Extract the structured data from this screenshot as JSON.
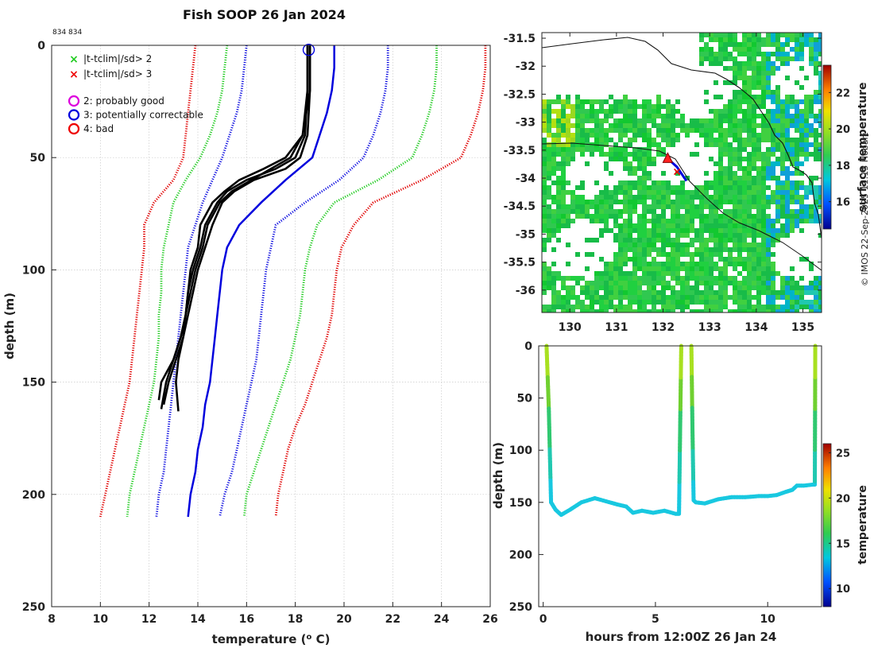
{
  "title": "Fish SOOP 26 Jan 2024",
  "profile_id": "834 834",
  "credit": "© IMOS 22-Sep-2025 11:13 Hobart",
  "colors": {
    "clim_sd3": "#e00000",
    "clim_sd2": "#22cc22",
    "clim_sd1": "#1010e0",
    "clim_sd_solid": "#0000dd",
    "profile": "#000000",
    "qc_probably_good": "#dd00dd",
    "qc_correctable": "#0000dd",
    "qc_bad": "#ee0000"
  },
  "legend": {
    "flags": [
      {
        "label": "|t-tclim|/sd> 2",
        "marker": "x",
        "color": "#22cc22"
      },
      {
        "label": "|t-tclim|/sd> 3",
        "marker": "x",
        "color": "#ee0000"
      }
    ],
    "qc": [
      {
        "label": "2: probably good",
        "color": "#dd00dd"
      },
      {
        "label": "3: potentially correctable",
        "color": "#0000dd"
      },
      {
        "label": "4: bad",
        "color": "#ee0000"
      }
    ]
  },
  "chart_data": [
    {
      "type": "line",
      "title": "Fish SOOP 26 Jan 2024",
      "xlabel": "temperature (° C)",
      "ylabel": "depth (m)",
      "xlim": [
        8,
        26
      ],
      "ylim": [
        250,
        0
      ],
      "xticks": [
        8,
        10,
        12,
        14,
        16,
        18,
        20,
        22,
        24,
        26
      ],
      "yticks": [
        0,
        50,
        100,
        150,
        200,
        250
      ],
      "grid": true,
      "climatology_depths": [
        0,
        10,
        20,
        30,
        40,
        50,
        60,
        70,
        80,
        90,
        100,
        110,
        120,
        130,
        140,
        150,
        160,
        170,
        180,
        190,
        200,
        210
      ],
      "series": [
        {
          "name": "clim -3sd",
          "style": "dotted",
          "color": "#e00000",
          "values": [
            13.9,
            13.8,
            13.7,
            13.6,
            13.5,
            13.4,
            13.0,
            12.2,
            11.8,
            11.8,
            11.7,
            11.6,
            11.5,
            11.4,
            11.3,
            11.2,
            11.0,
            10.8,
            10.6,
            10.4,
            10.2,
            10.0
          ]
        },
        {
          "name": "clim -2sd",
          "style": "dotted",
          "color": "#22cc22",
          "values": [
            15.2,
            15.1,
            15.0,
            14.8,
            14.5,
            14.1,
            13.5,
            13.0,
            12.8,
            12.6,
            12.5,
            12.5,
            12.4,
            12.4,
            12.3,
            12.2,
            12.0,
            11.8,
            11.6,
            11.4,
            11.2,
            11.1
          ]
        },
        {
          "name": "clim -1sd",
          "style": "dotted",
          "color": "#1010e0",
          "values": [
            16.0,
            15.9,
            15.8,
            15.6,
            15.3,
            15.0,
            14.6,
            14.2,
            13.9,
            13.6,
            13.5,
            13.4,
            13.3,
            13.2,
            13.1,
            13.0,
            12.9,
            12.8,
            12.7,
            12.6,
            12.4,
            12.3
          ]
        },
        {
          "name": "clim mean",
          "style": "solid",
          "color": "#0000dd",
          "values": [
            19.6,
            19.6,
            19.5,
            19.3,
            19.0,
            18.7,
            17.6,
            16.6,
            15.7,
            15.2,
            15.0,
            14.9,
            14.8,
            14.7,
            14.6,
            14.5,
            14.3,
            14.2,
            14.0,
            13.9,
            13.7,
            13.6
          ]
        },
        {
          "name": "clim +1sd",
          "style": "dotted",
          "color": "#1010e0",
          "values": [
            21.8,
            21.8,
            21.7,
            21.5,
            21.2,
            20.8,
            19.8,
            18.4,
            17.2,
            17.0,
            16.8,
            16.7,
            16.6,
            16.5,
            16.4,
            16.2,
            16.0,
            15.8,
            15.6,
            15.4,
            15.1,
            14.9
          ]
        },
        {
          "name": "clim +2sd",
          "style": "dotted",
          "color": "#22cc22",
          "values": [
            23.8,
            23.8,
            23.7,
            23.5,
            23.2,
            22.8,
            21.4,
            19.6,
            18.9,
            18.6,
            18.4,
            18.3,
            18.2,
            18.0,
            17.8,
            17.5,
            17.2,
            16.9,
            16.6,
            16.3,
            16.0,
            15.9
          ]
        },
        {
          "name": "clim +3sd",
          "style": "dotted",
          "color": "#e00000",
          "values": [
            25.8,
            25.8,
            25.7,
            25.5,
            25.2,
            24.8,
            23.2,
            21.2,
            20.4,
            19.9,
            19.7,
            19.6,
            19.5,
            19.3,
            19.0,
            18.7,
            18.4,
            18.0,
            17.7,
            17.5,
            17.3,
            17.2
          ]
        }
      ],
      "profiles": [
        {
          "name": "profile 1",
          "color": "#000000",
          "depth": [
            0,
            20,
            40,
            50,
            55,
            60,
            65,
            70,
            80,
            90,
            100,
            110,
            120,
            130,
            140,
            150,
            160
          ],
          "values": [
            18.6,
            18.6,
            18.5,
            18.2,
            17.6,
            16.3,
            15.5,
            15.0,
            14.6,
            14.3,
            14.0,
            13.8,
            13.6,
            13.4,
            13.1,
            12.8,
            12.6
          ]
        },
        {
          "name": "profile 2",
          "color": "#000000",
          "depth": [
            0,
            20,
            40,
            50,
            55,
            60,
            65,
            70,
            80,
            90,
            100,
            110,
            120,
            130,
            140,
            150,
            162
          ],
          "values": [
            18.5,
            18.5,
            18.4,
            18.0,
            17.2,
            16.0,
            15.2,
            14.8,
            14.3,
            14.1,
            13.8,
            13.6,
            13.5,
            13.3,
            13.0,
            12.7,
            12.5
          ]
        },
        {
          "name": "profile 3",
          "color": "#000000",
          "depth": [
            0,
            20,
            40,
            50,
            55,
            60,
            65,
            70,
            80,
            90,
            100,
            110,
            120,
            130,
            140,
            150,
            163
          ],
          "values": [
            18.6,
            18.6,
            18.3,
            17.6,
            16.7,
            15.7,
            15.1,
            14.6,
            14.1,
            14.0,
            13.7,
            13.6,
            13.5,
            13.4,
            13.2,
            13.1,
            13.2
          ]
        },
        {
          "name": "profile 4",
          "color": "#000000",
          "depth": [
            0,
            20,
            40,
            50,
            55,
            60,
            65,
            70,
            80,
            90,
            100,
            110,
            120,
            130,
            140,
            150,
            158
          ],
          "values": [
            18.5,
            18.5,
            18.3,
            17.8,
            17.0,
            16.2,
            15.4,
            14.9,
            14.4,
            14.2,
            13.9,
            13.7,
            13.5,
            13.3,
            13.0,
            12.5,
            12.4
          ]
        }
      ],
      "qc_marker": {
        "temperature": 18.55,
        "depth": 2,
        "flag": "3: potentially correctable"
      }
    },
    {
      "type": "heatmap",
      "title": "",
      "colorbar_label": "surface temperature",
      "colorbar_ticks": [
        16,
        18,
        20,
        22
      ],
      "colorbar_range": [
        14.5,
        23.5
      ],
      "xlim": [
        129.4,
        135.4
      ],
      "ylim": [
        -36.4,
        -31.4
      ],
      "xticks": [
        130,
        131,
        132,
        133,
        134,
        135
      ],
      "yticks": [
        -31.5,
        -32,
        -32.5,
        -33,
        -33.5,
        -34,
        -34.5,
        -35,
        -35.5,
        -36
      ],
      "ytick_labels": [
        "-31.5",
        "-32",
        "-32.5",
        "-33",
        "-33.5",
        "-34",
        "-34.5",
        "-35",
        "-35.5",
        "-36"
      ],
      "track": [
        [
          132.1,
          -33.65
        ],
        [
          132.3,
          -33.8
        ],
        [
          132.5,
          -34.05
        ]
      ],
      "start_marker": {
        "lon": 132.1,
        "lat": -33.65
      },
      "end_marker": {
        "lon": 132.3,
        "lat": -33.88
      }
    },
    {
      "type": "scatter",
      "xlabel": "hours from 12:00Z 26 Jan 24",
      "ylabel": "depth (m)",
      "colorbar_label": "temperature",
      "colorbar_ticks": [
        10,
        15,
        20,
        25
      ],
      "colorbar_range": [
        8,
        26
      ],
      "xlim": [
        -0.2,
        12.4
      ],
      "ylim": [
        250,
        0
      ],
      "xticks": [
        0,
        5,
        10
      ],
      "yticks": [
        0,
        50,
        100,
        150,
        200,
        250
      ],
      "series": [
        {
          "name": "dive 1",
          "x": [
            0.15,
            0.25,
            0.35,
            0.55,
            0.8,
            1.2,
            1.7,
            2.3,
            2.8,
            3.3,
            3.7,
            4.0,
            4.4,
            4.9,
            5.4,
            5.9,
            6.05,
            6.15
          ],
          "y": [
            0,
            60,
            150,
            157,
            162,
            157,
            150,
            146,
            149,
            152,
            154,
            160,
            158,
            160,
            158,
            161,
            161,
            0
          ]
        },
        {
          "name": "dive 2",
          "x": [
            6.6,
            6.65,
            6.7,
            6.8,
            7.2,
            7.8,
            8.4,
            9.0,
            9.6,
            10.0,
            10.4,
            10.8,
            11.1,
            11.3,
            11.6,
            12.0,
            12.1,
            12.12
          ],
          "y": [
            0,
            80,
            148,
            150,
            151,
            147,
            145,
            145,
            144,
            144,
            143,
            140,
            138,
            134,
            134,
            133,
            133,
            0
          ]
        }
      ]
    }
  ]
}
